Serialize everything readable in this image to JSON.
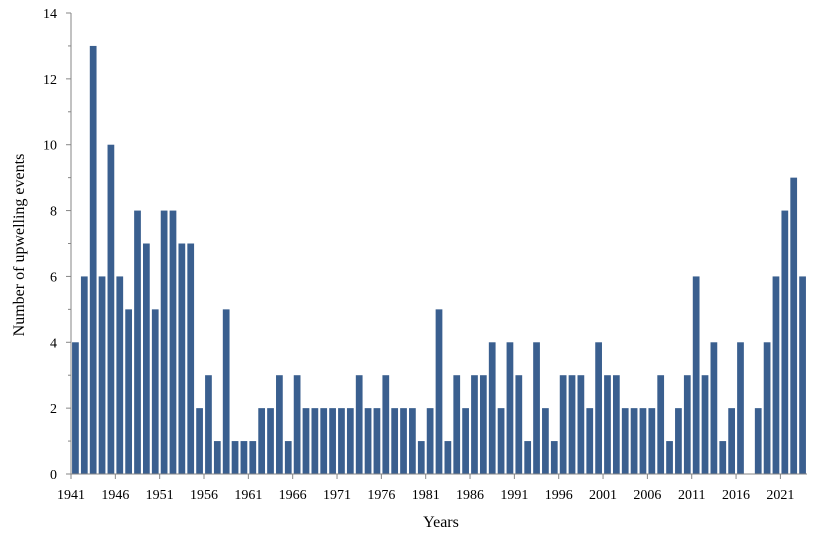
{
  "chart_data": {
    "type": "bar",
    "title": "",
    "xlabel": "Years",
    "ylabel": "Number of upwelling events",
    "ylim": [
      0,
      14
    ],
    "yticks": [
      0,
      2,
      4,
      6,
      8,
      10,
      12,
      14
    ],
    "xtick_labels": [
      "1941",
      "1946",
      "1951",
      "1956",
      "1961",
      "1966",
      "1971",
      "1976",
      "1981",
      "1986",
      "1991",
      "1996",
      "2001",
      "2006",
      "2011",
      "2016",
      "2021"
    ],
    "grid": false,
    "legend": "none",
    "bar_color": "#3A5F8F",
    "categories": [
      1941,
      1942,
      1943,
      1944,
      1945,
      1946,
      1947,
      1948,
      1949,
      1950,
      1951,
      1952,
      1953,
      1954,
      1955,
      1956,
      1957,
      1958,
      1959,
      1960,
      1961,
      1962,
      1963,
      1964,
      1965,
      1966,
      1967,
      1968,
      1969,
      1970,
      1971,
      1972,
      1973,
      1974,
      1975,
      1976,
      1977,
      1978,
      1979,
      1980,
      1981,
      1982,
      1983,
      1984,
      1985,
      1986,
      1987,
      1988,
      1989,
      1990,
      1991,
      1992,
      1993,
      1994,
      1995,
      1996,
      1997,
      1998,
      1999,
      2000,
      2001,
      2002,
      2003,
      2004,
      2005,
      2006,
      2007,
      2008,
      2009,
      2010,
      2011,
      2012,
      2013,
      2014,
      2015,
      2016,
      2017,
      2018,
      2019,
      2020,
      2021,
      2022,
      2023
    ],
    "values": [
      4,
      6,
      13,
      6,
      10,
      6,
      5,
      8,
      7,
      5,
      8,
      8,
      7,
      7,
      2,
      3,
      1,
      5,
      1,
      1,
      1,
      2,
      2,
      3,
      1,
      3,
      2,
      2,
      2,
      2,
      2,
      2,
      3,
      2,
      2,
      3,
      2,
      2,
      2,
      1,
      2,
      5,
      1,
      3,
      2,
      3,
      3,
      4,
      2,
      4,
      3,
      1,
      4,
      2,
      1,
      3,
      3,
      3,
      2,
      4,
      3,
      3,
      2,
      2,
      2,
      2,
      3,
      1,
      2,
      3,
      6,
      3,
      4,
      1,
      2,
      4,
      0,
      2,
      4,
      6,
      8,
      9,
      6
    ]
  }
}
